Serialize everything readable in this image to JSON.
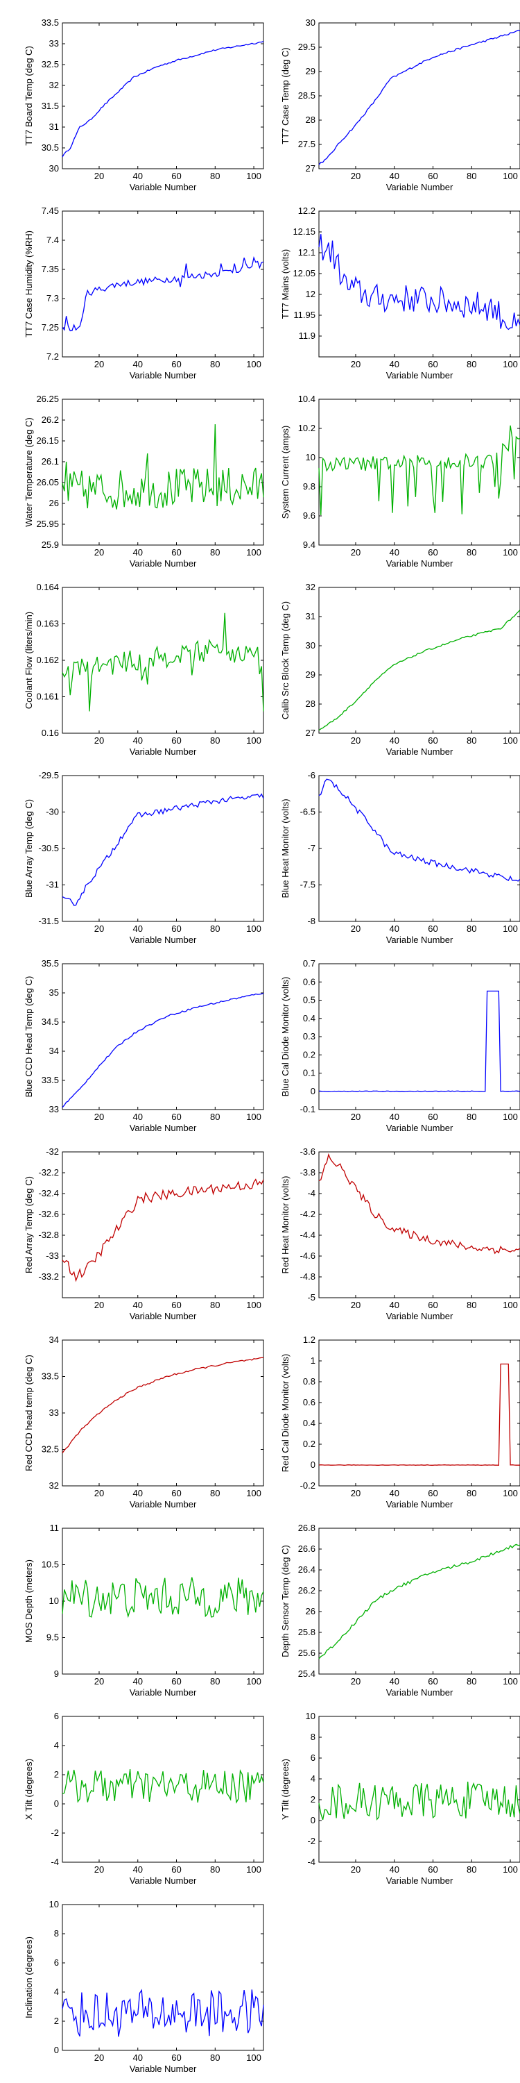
{
  "xlabel": "Variable Number",
  "xlim": [
    1,
    105
  ],
  "xticks": [
    20,
    40,
    60,
    80,
    100
  ],
  "chart_data": [
    {
      "type": "line",
      "ylabel": "TT7 Board Temp (deg C)",
      "color": "#0000ff",
      "ylim": [
        30,
        33.5
      ],
      "yticks": [
        "30",
        "30.5",
        "31",
        "31.5",
        "32",
        "32.5",
        "33",
        "33.5"
      ],
      "yvals": [
        30,
        30.5,
        31,
        31.5,
        32,
        32.5,
        33,
        33.5
      ],
      "shape": "rise",
      "start": 30.3,
      "end": 33.05,
      "noise": 0.02,
      "knots": [
        [
          1,
          30.3
        ],
        [
          5,
          30.5
        ],
        [
          10,
          31.0
        ],
        [
          15,
          31.15
        ],
        [
          22,
          31.5
        ],
        [
          30,
          31.85
        ],
        [
          38,
          32.2
        ],
        [
          50,
          32.45
        ],
        [
          60,
          32.6
        ],
        [
          80,
          32.85
        ],
        [
          105,
          33.05
        ]
      ]
    },
    {
      "type": "line",
      "ylabel": "TT7 Case Temp (deg C)",
      "color": "#0000ff",
      "ylim": [
        27,
        30
      ],
      "yticks": [
        "27",
        "27.5",
        "28",
        "28.5",
        "29",
        "29.5",
        "30"
      ],
      "yvals": [
        27,
        27.5,
        28,
        28.5,
        29,
        29.5,
        30
      ],
      "knots": [
        [
          1,
          27.1
        ],
        [
          5,
          27.2
        ],
        [
          12,
          27.55
        ],
        [
          20,
          27.9
        ],
        [
          30,
          28.4
        ],
        [
          38,
          28.85
        ],
        [
          50,
          29.1
        ],
        [
          60,
          29.3
        ],
        [
          80,
          29.55
        ],
        [
          100,
          29.78
        ],
        [
          105,
          29.85
        ]
      ],
      "noise": 0.02
    },
    {
      "type": "line",
      "ylabel": "TT7 Case Humidity (%RH)",
      "color": "#0000ff",
      "ylim": [
        7.2,
        7.45
      ],
      "yticks": [
        "7.2",
        "7.25",
        "7.3",
        "7.35",
        "7.4",
        "7.45"
      ],
      "yvals": [
        7.2,
        7.25,
        7.3,
        7.35,
        7.4,
        7.45
      ],
      "knots": [
        [
          1,
          7.25
        ],
        [
          10,
          7.25
        ],
        [
          12,
          7.29
        ],
        [
          14,
          7.31
        ],
        [
          30,
          7.325
        ],
        [
          60,
          7.335
        ],
        [
          85,
          7.345
        ],
        [
          105,
          7.36
        ]
      ],
      "noise": 0.006,
      "spikes": [
        [
          3,
          7.27
        ],
        [
          6,
          7.245
        ],
        [
          12,
          7.28
        ],
        [
          62,
          7.32
        ],
        [
          65,
          7.36
        ],
        [
          83,
          7.36
        ],
        [
          90,
          7.36
        ],
        [
          95,
          7.37
        ],
        [
          100,
          7.37
        ]
      ]
    },
    {
      "type": "line",
      "ylabel": "TT7 Mains  (volts)",
      "color": "#0000ff",
      "ylim": [
        11.85,
        12.2
      ],
      "yticks": [
        "11.9",
        "11.95",
        "12",
        "12.05",
        "12.1",
        "12.15",
        "12.2"
      ],
      "yvals": [
        11.9,
        11.95,
        12,
        12.05,
        12.1,
        12.15,
        12.2
      ],
      "knots": [
        [
          1,
          12.12
        ],
        [
          8,
          12.1
        ],
        [
          15,
          12.02
        ],
        [
          30,
          11.99
        ],
        [
          50,
          11.99
        ],
        [
          70,
          11.98
        ],
        [
          90,
          11.97
        ],
        [
          105,
          11.91
        ]
      ],
      "noise": 0.035
    },
    {
      "type": "line",
      "ylabel": "Water Temperature (deg C)",
      "color": "#00b000",
      "ylim": [
        25.9,
        26.25
      ],
      "yticks": [
        "25.9",
        "25.95",
        "26",
        "26.05",
        "26.1",
        "26.15",
        "26.2",
        "26.25"
      ],
      "yvals": [
        25.9,
        25.95,
        26,
        26.05,
        26.1,
        26.15,
        26.2,
        26.25
      ],
      "knots": [
        [
          1,
          26.03
        ],
        [
          105,
          26.04
        ]
      ],
      "noise": 0.05,
      "spikes": [
        [
          80,
          26.19
        ],
        [
          3,
          26.1
        ],
        [
          45,
          26.12
        ]
      ]
    },
    {
      "type": "line",
      "ylabel": "System Current (amps)",
      "color": "#00b000",
      "ylim": [
        9.4,
        10.4
      ],
      "yticks": [
        "9.4",
        "9.6",
        "9.8",
        "10",
        "10.2",
        "10.4"
      ],
      "yvals": [
        9.4,
        9.6,
        9.8,
        10,
        10.2,
        10.4
      ],
      "knots": [
        [
          1,
          9.95
        ],
        [
          90,
          9.98
        ],
        [
          100,
          10.1
        ],
        [
          105,
          10.1
        ]
      ],
      "noise": 0.05,
      "dips": 0.38,
      "spikes": [
        [
          100,
          10.22
        ]
      ]
    },
    {
      "type": "line",
      "ylabel": "Coolant Flow (liters/min)",
      "color": "#00b000",
      "ylim": [
        0.16,
        0.164
      ],
      "yticks": [
        "0.16",
        "0.161",
        "0.162",
        "0.163",
        "0.164"
      ],
      "yvals": [
        0.16,
        0.161,
        0.162,
        0.163,
        0.164
      ],
      "knots": [
        [
          1,
          0.1617
        ],
        [
          40,
          0.162
        ],
        [
          80,
          0.1623
        ],
        [
          105,
          0.1621
        ]
      ],
      "noise": 0.0003,
      "dips": 0.0009,
      "spikes": [
        [
          85,
          0.1633
        ],
        [
          105,
          0.1606
        ],
        [
          15,
          0.1606
        ]
      ]
    },
    {
      "type": "line",
      "ylabel": "Calib Src Block Temp (deg C)",
      "color": "#00b000",
      "ylim": [
        27,
        32
      ],
      "yticks": [
        "27",
        "28",
        "29",
        "30",
        "31",
        "32"
      ],
      "yvals": [
        27,
        28,
        29,
        30,
        31,
        32
      ],
      "knots": [
        [
          1,
          27.1
        ],
        [
          10,
          27.5
        ],
        [
          20,
          28.1
        ],
        [
          30,
          28.8
        ],
        [
          40,
          29.35
        ],
        [
          55,
          29.8
        ],
        [
          75,
          30.25
        ],
        [
          95,
          30.6
        ],
        [
          100,
          30.9
        ],
        [
          105,
          31.2
        ]
      ],
      "noise": 0.03
    },
    {
      "type": "line",
      "ylabel": "Blue Array Temp (deg C)",
      "color": "#0000ff",
      "ylim": [
        -31.5,
        -29.5
      ],
      "yticks": [
        "-31.5",
        "-31",
        "-30.5",
        "-30",
        "-29.5"
      ],
      "yvals": [
        -31.5,
        -31,
        -30.5,
        -30,
        -29.5
      ],
      "knots": [
        [
          1,
          -31.2
        ],
        [
          8,
          -31.25
        ],
        [
          15,
          -30.95
        ],
        [
          25,
          -30.6
        ],
        [
          35,
          -30.2
        ],
        [
          40,
          -30.05
        ],
        [
          60,
          -29.95
        ],
        [
          80,
          -29.85
        ],
        [
          105,
          -29.78
        ]
      ],
      "noise": 0.04
    },
    {
      "type": "line",
      "ylabel": "Blue Heat Monitor (volts)",
      "color": "#0000ff",
      "ylim": [
        -8,
        -6
      ],
      "yticks": [
        "-8",
        "-7.5",
        "-7",
        "-6.5",
        "-6"
      ],
      "yvals": [
        -8,
        -7.5,
        -7,
        -6.5,
        -6
      ],
      "knots": [
        [
          1,
          -6.3
        ],
        [
          5,
          -6.05
        ],
        [
          12,
          -6.2
        ],
        [
          20,
          -6.45
        ],
        [
          30,
          -6.75
        ],
        [
          38,
          -7.05
        ],
        [
          45,
          -7.1
        ],
        [
          60,
          -7.2
        ],
        [
          80,
          -7.3
        ],
        [
          105,
          -7.45
        ]
      ],
      "noise": 0.04
    },
    {
      "type": "line",
      "ylabel": "Blue CCD Head Temp (deg C)",
      "color": "#0000ff",
      "ylim": [
        33,
        35.5
      ],
      "yticks": [
        "33",
        "33.5",
        "34",
        "34.5",
        "35",
        "35.5"
      ],
      "yvals": [
        33,
        33.5,
        34,
        34.5,
        35,
        35.5
      ],
      "knots": [
        [
          1,
          33.05
        ],
        [
          10,
          33.35
        ],
        [
          20,
          33.75
        ],
        [
          30,
          34.1
        ],
        [
          40,
          34.35
        ],
        [
          55,
          34.6
        ],
        [
          70,
          34.75
        ],
        [
          90,
          34.9
        ],
        [
          105,
          35.0
        ]
      ],
      "noise": 0.015
    },
    {
      "type": "line",
      "ylabel": "Blue Cal Diode Monitor (volts)",
      "color": "#0000ff",
      "ylim": [
        -0.1,
        0.7
      ],
      "yticks": [
        "-0.1",
        "0",
        "0.1",
        "0.2",
        "0.3",
        "0.4",
        "0.5",
        "0.6",
        "0.7"
      ],
      "yvals": [
        -0.1,
        0,
        0.1,
        0.2,
        0.3,
        0.4,
        0.5,
        0.6,
        0.7
      ],
      "knots": [
        [
          1,
          0
        ],
        [
          105,
          0
        ]
      ],
      "noise": 0.002,
      "pulse": [
        [
          88,
          94
        ],
        0.55
      ]
    },
    {
      "type": "line",
      "ylabel": "Red Array Temp (deg C)",
      "color": "#c00000",
      "ylim": [
        -33.4,
        -32
      ],
      "yticks": [
        "-33.2",
        "-33",
        "-32.8",
        "-32.6",
        "-32.4",
        "-32.2",
        "-32"
      ],
      "yvals": [
        -33.2,
        -33,
        -32.8,
        -32.6,
        -32.4,
        -32.2,
        -32
      ],
      "knots": [
        [
          1,
          -33.0
        ],
        [
          8,
          -33.2
        ],
        [
          15,
          -33.1
        ],
        [
          25,
          -32.85
        ],
        [
          35,
          -32.6
        ],
        [
          40,
          -32.45
        ],
        [
          60,
          -32.4
        ],
        [
          80,
          -32.35
        ],
        [
          105,
          -32.3
        ]
      ],
      "noise": 0.05
    },
    {
      "type": "line",
      "ylabel": "Red Heat Monitor (volts)",
      "color": "#c00000",
      "ylim": [
        -5,
        -3.6
      ],
      "yticks": [
        "-5",
        "-4.8",
        "-4.6",
        "-4.4",
        "-4.2",
        "-4",
        "-3.8",
        "-3.6"
      ],
      "yvals": [
        -5,
        -4.8,
        -4.6,
        -4.4,
        -4.2,
        -4,
        -3.8,
        -3.6
      ],
      "knots": [
        [
          1,
          -3.9
        ],
        [
          6,
          -3.65
        ],
        [
          12,
          -3.75
        ],
        [
          20,
          -3.95
        ],
        [
          30,
          -4.2
        ],
        [
          40,
          -4.35
        ],
        [
          60,
          -4.45
        ],
        [
          80,
          -4.52
        ],
        [
          105,
          -4.55
        ]
      ],
      "noise": 0.04
    },
    {
      "type": "line",
      "ylabel": "Red CCD head temp (deg C)",
      "color": "#c00000",
      "ylim": [
        32,
        34
      ],
      "yticks": [
        "32",
        "32.5",
        "33",
        "33.5",
        "34"
      ],
      "yvals": [
        32,
        32.5,
        33,
        33.5,
        34
      ],
      "knots": [
        [
          1,
          32.45
        ],
        [
          10,
          32.75
        ],
        [
          20,
          33.0
        ],
        [
          30,
          33.2
        ],
        [
          40,
          33.35
        ],
        [
          55,
          33.5
        ],
        [
          70,
          33.6
        ],
        [
          90,
          33.7
        ],
        [
          105,
          33.75
        ]
      ],
      "noise": 0.012
    },
    {
      "type": "line",
      "ylabel": "Red Cal Diode Monitor (volts)",
      "color": "#c00000",
      "ylim": [
        -0.2,
        1.2
      ],
      "yticks": [
        "-0.2",
        "0",
        "0.2",
        "0.4",
        "0.6",
        "0.8",
        "1",
        "1.2"
      ],
      "yvals": [
        -0.2,
        0,
        0.2,
        0.4,
        0.6,
        0.8,
        1,
        1.2
      ],
      "knots": [
        [
          1,
          0
        ],
        [
          105,
          0
        ]
      ],
      "noise": 0.002,
      "pulse": [
        [
          95,
          99
        ],
        0.97
      ]
    },
    {
      "type": "line",
      "ylabel": "MOS Depth  (meters)",
      "color": "#00b000",
      "ylim": [
        9,
        11
      ],
      "yticks": [
        "9",
        "9.5",
        "10",
        "10.5",
        "11"
      ],
      "yvals": [
        9,
        9.5,
        10,
        10.5,
        11
      ],
      "knots": [
        [
          1,
          10.05
        ],
        [
          105,
          10.05
        ]
      ],
      "noise": 0.28
    },
    {
      "type": "line",
      "ylabel": "Depth Sensor Temp (deg C)",
      "color": "#00b000",
      "ylim": [
        25.4,
        26.8
      ],
      "yticks": [
        "25.4",
        "25.6",
        "25.8",
        "26",
        "26.2",
        "26.4",
        "26.6",
        "26.8"
      ],
      "yvals": [
        25.4,
        25.6,
        25.8,
        26,
        26.2,
        26.4,
        26.6,
        26.8
      ],
      "knots": [
        [
          1,
          25.55
        ],
        [
          10,
          25.7
        ],
        [
          20,
          25.9
        ],
        [
          30,
          26.1
        ],
        [
          40,
          26.22
        ],
        [
          60,
          26.38
        ],
        [
          80,
          26.48
        ],
        [
          100,
          26.62
        ],
        [
          105,
          26.65
        ]
      ],
      "noise": 0.015
    },
    {
      "type": "line",
      "ylabel": "X Tilt  (degrees)",
      "color": "#00b000",
      "ylim": [
        -4,
        6
      ],
      "yticks": [
        "-4",
        "-2",
        "0",
        "2",
        "4",
        "6"
      ],
      "yvals": [
        -4,
        -2,
        0,
        2,
        4,
        6
      ],
      "knots": [
        [
          1,
          1.2
        ],
        [
          105,
          1.2
        ]
      ],
      "noise": 1.2
    },
    {
      "type": "line",
      "ylabel": "Y Tilt  (degrees)",
      "color": "#00b000",
      "ylim": [
        -4,
        10
      ],
      "yticks": [
        "-4",
        "-2",
        "0",
        "2",
        "4",
        "6",
        "8",
        "10"
      ],
      "yvals": [
        -4,
        -2,
        0,
        2,
        4,
        6,
        8,
        10
      ],
      "knots": [
        [
          1,
          1.8
        ],
        [
          105,
          2.0
        ]
      ],
      "noise": 1.8
    },
    {
      "type": "line",
      "ylabel": "Inclination  (degrees)",
      "color": "#0000ff",
      "ylim": [
        0,
        10
      ],
      "yticks": [
        "0",
        "2",
        "4",
        "6",
        "8",
        "10"
      ],
      "yvals": [
        0,
        2,
        4,
        6,
        8,
        10
      ],
      "knots": [
        [
          1,
          2.5
        ],
        [
          105,
          2.6
        ]
      ],
      "noise": 1.6,
      "positive": true
    }
  ]
}
